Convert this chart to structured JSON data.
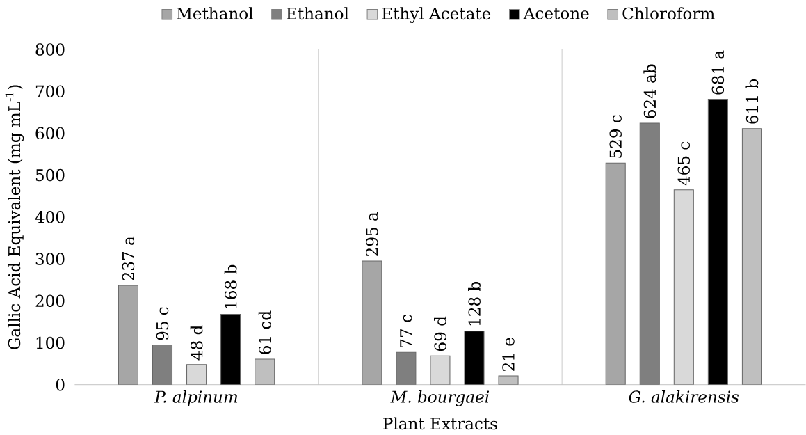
{
  "chart_data": {
    "type": "bar",
    "xlabel": "Plant Extracts",
    "ylabel": "Gallic Acid Equivalent (mg mL$^{-1}$)",
    "categories": [
      "P. alpinum",
      "M. bourgaei",
      "G. alakirensis"
    ],
    "series": [
      {
        "name": "Methanol",
        "color": "#a6a6a6",
        "values": [
          237,
          295,
          529
        ],
        "value_labels": [
          "237 a",
          "295 a",
          "529 c"
        ]
      },
      {
        "name": "Ethanol",
        "color": "#7f7f7f",
        "values": [
          95,
          77,
          624
        ],
        "value_labels": [
          "95 c",
          "77 c",
          "624 ab"
        ]
      },
      {
        "name": "Ethyl Acetate",
        "color": "#d9d9d9",
        "values": [
          48,
          69,
          465
        ],
        "value_labels": [
          "48 d",
          "69 d",
          "465 c"
        ]
      },
      {
        "name": "Acetone",
        "color": "#000000",
        "values": [
          168,
          128,
          681
        ],
        "value_labels": [
          "168 b",
          "128 b",
          "681 a"
        ]
      },
      {
        "name": "Chloroform",
        "color": "#bfbfbf",
        "values": [
          61,
          21,
          611
        ],
        "value_labels": [
          "61 cd",
          "21 e",
          "611 b"
        ]
      }
    ],
    "ylim": [
      0,
      800
    ],
    "yticks": [
      0,
      100,
      200,
      300,
      400,
      500,
      600,
      700,
      800
    ],
    "grid": "x",
    "legend": "top"
  }
}
